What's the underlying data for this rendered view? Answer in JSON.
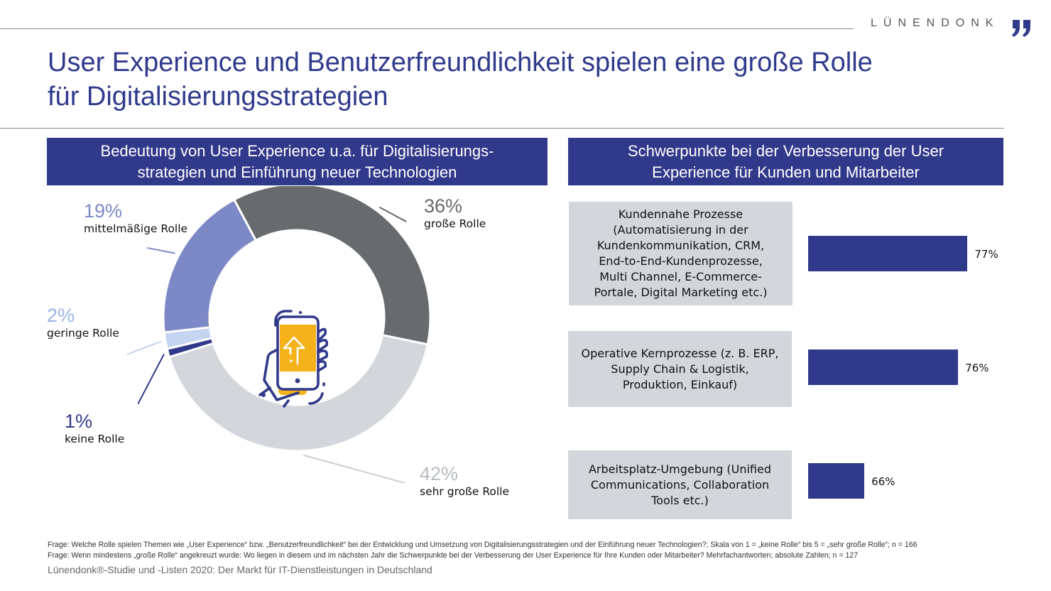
{
  "header": {
    "logo_text": "LÜNENDONK",
    "title_line1": "User Experience und Benutzerfreundlichkeit spielen eine große Rolle",
    "title_line2": "für Digitalisierungsstrategien"
  },
  "colors": {
    "brand": "#31398a",
    "panel_bg": "#d3d7db"
  },
  "left_panel": {
    "heading_line1": "Bedeutung von User Experience u.a. für Digitalisierungs-",
    "heading_line2": "strategien und Einführung neuer Technologien",
    "center_icon": "hand-holding-smartphone-upload-icon"
  },
  "right_panel": {
    "heading_line1": "Schwerpunkte bei der Verbesserung der User",
    "heading_line2": "Experience für Kunden und Mitarbeiter"
  },
  "chart_data": [
    {
      "type": "pie",
      "variant": "donut",
      "title": "Bedeutung von User Experience u.a. für Digitalisierungsstrategien und Einführung neuer Technologien",
      "slices": [
        {
          "label": "große Rolle",
          "value": 36,
          "display": "36%",
          "color": "#676b6e",
          "pct_color": "#676b6e"
        },
        {
          "label": "sehr große Rolle",
          "value": 42,
          "display": "42%",
          "color": "#d3d7db",
          "pct_color": "#b7bcc2"
        },
        {
          "label": "keine Rolle",
          "value": 1,
          "display": "1%",
          "color": "#31398a",
          "pct_color": "#31398a"
        },
        {
          "label": "geringe Rolle",
          "value": 2,
          "display": "2%",
          "color": "#c5d4f0",
          "pct_color": "#9bb3e6"
        },
        {
          "label": "mittelmäßige Rolle",
          "value": 19,
          "display": "19%",
          "color": "#7d89c7",
          "pct_color": "#7d89c7"
        }
      ]
    },
    {
      "type": "bar",
      "orientation": "horizontal",
      "title": "Schwerpunkte bei der Verbesserung der User Experience für Kunden und Mitarbeiter",
      "categories": [
        "Kundennahe Prozesse (Automatisierung in der Kundenkommunikation, CRM, End-to-End-Kundenprozesse, Multi Channel, E-Commerce-Portale, Digital Marketing etc.)",
        "Operative Kernprozesse (z. B. ERP, Supply Chain & Logistik, Produktion, Einkauf)",
        "Arbeitsplatz-Umgebung (Unified Communications, Collaboration Tools etc.)"
      ],
      "category_lines": [
        [
          "Kundennahe Prozesse",
          "(Automatisierung in der",
          "Kundenkommunikation, CRM,",
          "End-to-End-Kundenprozesse,",
          "Multi Channel, E-Commerce-",
          "Portale, Digital Marketing etc.)"
        ],
        [
          "Operative Kernprozesse (z. B. ERP,",
          "Supply Chain & Logistik,",
          "Produktion, Einkauf)"
        ],
        [
          "Arbeitsplatz-Umgebung (Unified",
          "Communications, Collaboration",
          "Tools etc.)"
        ]
      ],
      "values": [
        77,
        76,
        66
      ],
      "value_labels": [
        "77%",
        "76%",
        "66%"
      ],
      "xlim": [
        60,
        78
      ],
      "unit": "%"
    }
  ],
  "footnotes": {
    "q1": "Frage: Welche Rolle spielen Themen wie „User Experience“ bzw. „Benutzerfreundlichkeit“ bei der Entwicklung und Umsetzung von Digitalisierungsstrategien und der Einführung neuer Technologien?; Skala von 1 = „keine Rolle“ bis 5 = „sehr große Rolle“; n = 166",
    "q2": "Frage: Wenn mindestens „große Rolle“ angekreuzt wurde: Wo liegen in diesem und im nächsten Jahr die Schwerpunkte bei der Verbesserung der User Experience für Ihre Kunden oder Mitarbeiter? Mehrfachantworten; absolute Zahlen; n = 127",
    "source": "Lünendonk®-Studie und -Listen 2020: Der Markt für IT-Dienstleistungen in Deutschland"
  }
}
